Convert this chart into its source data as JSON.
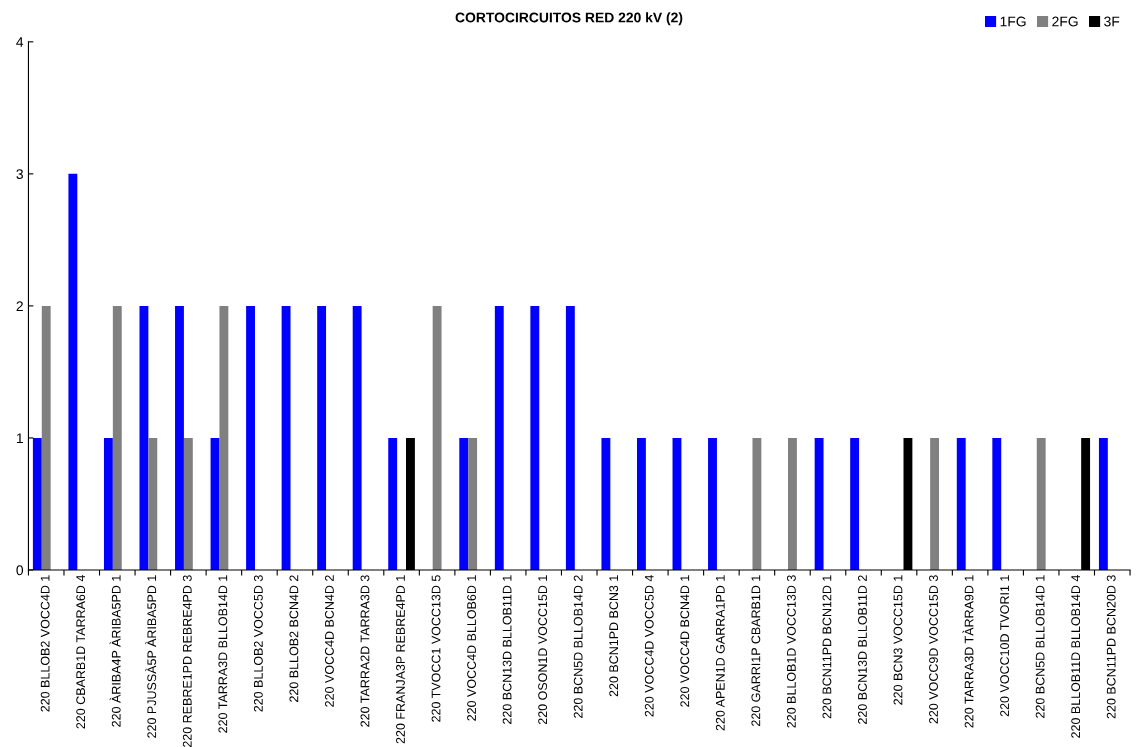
{
  "chart_data": {
    "type": "bar",
    "title": "CORTOCIRCUITOS RED 220 kV (2)",
    "categories": [
      "220 BLLOB2 VOCC4D 1",
      "220 CBARB1D TARRA6D 4",
      "220 ÀRIBA4P ÀRIBA5PD 1",
      "220 PJUSSÀ5P ÀRIBA5PD 1",
      "220 REBRE1PD REBRE4PD 3",
      "220 TARRA3D BLLOB14D 1",
      "220 BLLOB2 VOCC5D 3",
      "220 BLLOB2 BCN4D 2",
      "220 VOCC4D BCN4D 2",
      "220 TARRA2D TARRA3D 3",
      "220 FRANJA3P REBRE4PD 1",
      "220 TVOCC1 VOCC13D 5",
      "220 VOCC4D BLLOB6D 1",
      "220 BCN13D BLLOB11D 1",
      "220 OSON1D VOCC15D 1",
      "220 BCN5D BLLOB14D 2",
      "220 BCN1PD BCN3 1",
      "220 VOCC4D VOCC5D 4",
      "220 VOCC4D BCN4D 1",
      "220 APEN1D GARRA1PD 1",
      "220 GARRI1P CBARB1D 1",
      "220 BLLOB1D VOCC13D 3",
      "220 BCN11PD BCN12D 1",
      "220 BCN13D BLLOB11D 2",
      "220 BCN3 VOCC15D 1",
      "220 VOCC9D VOCC15D 3",
      "220 TARRA3D TÀRRA9D 1",
      "220 VOCC10D TVORI1 1",
      "220 BCN5D BLLOB14D 1",
      "220 BLLOB11D BLLOB14D 4",
      "220 BCN11PD BCN20D 3"
    ],
    "series": [
      {
        "name": "1FG",
        "color": "#0000ff",
        "values": [
          1,
          3,
          1,
          2,
          2,
          1,
          2,
          2,
          2,
          2,
          1,
          0,
          1,
          2,
          2,
          2,
          1,
          1,
          1,
          1,
          0,
          0,
          1,
          1,
          0,
          0,
          1,
          1,
          0,
          0,
          1
        ]
      },
      {
        "name": "2FG",
        "color": "#808080",
        "values": [
          2,
          0,
          2,
          1,
          1,
          2,
          0,
          0,
          0,
          0,
          0,
          2,
          1,
          0,
          0,
          0,
          0,
          0,
          0,
          0,
          1,
          1,
          0,
          0,
          0,
          1,
          0,
          0,
          1,
          0,
          0
        ]
      },
      {
        "name": "3F",
        "color": "#000000",
        "values": [
          0,
          0,
          0,
          0,
          0,
          0,
          0,
          0,
          0,
          0,
          1,
          0,
          0,
          0,
          0,
          0,
          0,
          0,
          0,
          0,
          0,
          0,
          0,
          0,
          1,
          0,
          0,
          0,
          0,
          1,
          0
        ]
      }
    ],
    "ylim": [
      0,
      4
    ],
    "yticks": [
      0,
      1,
      2,
      3,
      4
    ],
    "grid": false,
    "legend": "top right"
  }
}
